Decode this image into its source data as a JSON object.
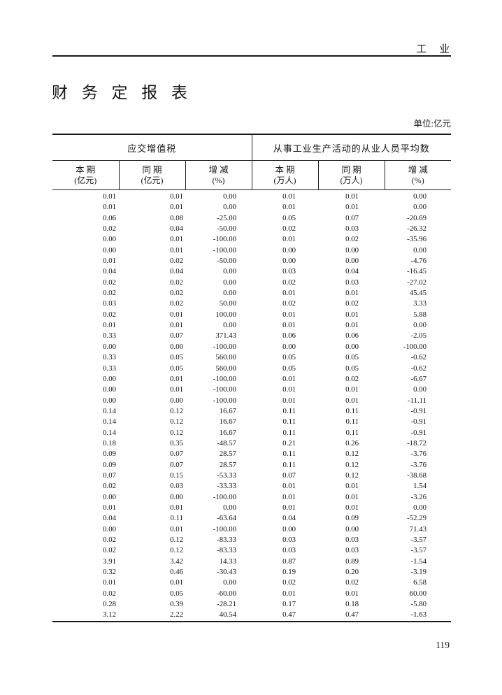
{
  "page": {
    "running_head": "工　业",
    "title": "财 务 定 报 表",
    "unit_note": "单位:亿元",
    "page_number": "119"
  },
  "table": {
    "groups": [
      {
        "label": "应交增值税"
      },
      {
        "label": "从事工业生产活动的从业人员平均数"
      }
    ],
    "columns": [
      {
        "line1": "本 期",
        "line2": "(亿元)"
      },
      {
        "line1": "同 期",
        "line2": "(亿元)"
      },
      {
        "line1": "增 减",
        "line2": "(%)"
      },
      {
        "line1": "本 期",
        "line2": "(万人)"
      },
      {
        "line1": "同 期",
        "line2": "(万人)"
      },
      {
        "line1": "增 减",
        "line2": "(%)"
      }
    ],
    "rows": [
      [
        "0.01",
        "0.01",
        "0.00",
        "0.01",
        "0.01",
        "0.00"
      ],
      [
        "0.01",
        "0.01",
        "0.00",
        "0.01",
        "0.01",
        "0.00"
      ],
      [
        "0.06",
        "0.08",
        "-25.00",
        "0.05",
        "0.07",
        "-20.69"
      ],
      [
        "0.02",
        "0.04",
        "-50.00",
        "0.02",
        "0.03",
        "-26.32"
      ],
      [
        "0.00",
        "0.01",
        "-100.00",
        "0.01",
        "0.02",
        "-35.96"
      ],
      [
        "0.00",
        "0.01",
        "-100.00",
        "0.00",
        "0.00",
        "0.00"
      ],
      [
        "0.01",
        "0.02",
        "-50.00",
        "0.00",
        "0.00",
        "-4.76"
      ],
      [
        "0.04",
        "0.04",
        "0.00",
        "0.03",
        "0.04",
        "-16.45"
      ],
      [
        "0.02",
        "0.02",
        "0.00",
        "0.02",
        "0.03",
        "-27.02"
      ],
      [
        "0.02",
        "0.02",
        "0.00",
        "0.01",
        "0.01",
        "45.45"
      ],
      [
        "0.03",
        "0.02",
        "50.00",
        "0.02",
        "0.02",
        "3.33"
      ],
      [
        "0.02",
        "0.01",
        "100.00",
        "0.01",
        "0.01",
        "5.88"
      ],
      [
        "0.01",
        "0.01",
        "0.00",
        "0.01",
        "0.01",
        "0.00"
      ],
      [
        "0.33",
        "0.07",
        "371.43",
        "0.06",
        "0.06",
        "-2.05"
      ],
      [
        "0.00",
        "0.00",
        "-100.00",
        "0.00",
        "0.00",
        "-100.00"
      ],
      [
        "0.33",
        "0.05",
        "560.00",
        "0.05",
        "0.05",
        "-0.62"
      ],
      [
        "0.33",
        "0.05",
        "560.00",
        "0.05",
        "0.05",
        "-0.62"
      ],
      [
        "0.00",
        "0.01",
        "-100.00",
        "0.01",
        "0.02",
        "-6.67"
      ],
      [
        "0.00",
        "0.01",
        "-100.00",
        "0.01",
        "0.01",
        "0.00"
      ],
      [
        "0.00",
        "0.00",
        "-100.00",
        "0.01",
        "0.01",
        "-11.11"
      ],
      [
        "0.14",
        "0.12",
        "16.67",
        "0.11",
        "0.11",
        "-0.91"
      ],
      [
        "0.14",
        "0.12",
        "16.67",
        "0.11",
        "0.11",
        "-0.91"
      ],
      [
        "0.14",
        "0.12",
        "16.67",
        "0.11",
        "0.11",
        "-0.91"
      ],
      [
        "0.18",
        "0.35",
        "-48.57",
        "0.21",
        "0.26",
        "-18.72"
      ],
      [
        "0.09",
        "0.07",
        "28.57",
        "0.11",
        "0.12",
        "-3.76"
      ],
      [
        "0.09",
        "0.07",
        "28.57",
        "0.11",
        "0.12",
        "-3.76"
      ],
      [
        "0.07",
        "0.15",
        "-53.33",
        "0.07",
        "0.12",
        "-38.68"
      ],
      [
        "0.02",
        "0.03",
        "-33.33",
        "0.01",
        "0.01",
        "1.54"
      ],
      [
        "0.00",
        "0.00",
        "-100.00",
        "0.01",
        "0.01",
        "-3.26"
      ],
      [
        "0.01",
        "0.01",
        "0.00",
        "0.01",
        "0.01",
        "0.00"
      ],
      [
        "0.04",
        "0.11",
        "-63.64",
        "0.04",
        "0.09",
        "-52.29"
      ],
      [
        "0.00",
        "0.01",
        "-100.00",
        "0.00",
        "0.00",
        "71.43"
      ],
      [
        "0.02",
        "0.12",
        "-83.33",
        "0.03",
        "0.03",
        "-3.57"
      ],
      [
        "0.02",
        "0.12",
        "-83.33",
        "0.03",
        "0.03",
        "-3.57"
      ],
      [
        "3.91",
        "3.42",
        "14.33",
        "0.87",
        "0.89",
        "-1.54"
      ],
      [
        "0.32",
        "0.46",
        "-30.43",
        "0.19",
        "0.20",
        "-3.19"
      ],
      [
        "0.01",
        "0.01",
        "0.00",
        "0.02",
        "0.02",
        "6.58"
      ],
      [
        "0.02",
        "0.05",
        "-60.00",
        "0.01",
        "0.01",
        "60.00"
      ],
      [
        "0.28",
        "0.39",
        "-28.21",
        "0.17",
        "0.18",
        "-5.80"
      ],
      [
        "3.12",
        "2.22",
        "40.54",
        "0.47",
        "0.47",
        "-1.63"
      ]
    ]
  }
}
